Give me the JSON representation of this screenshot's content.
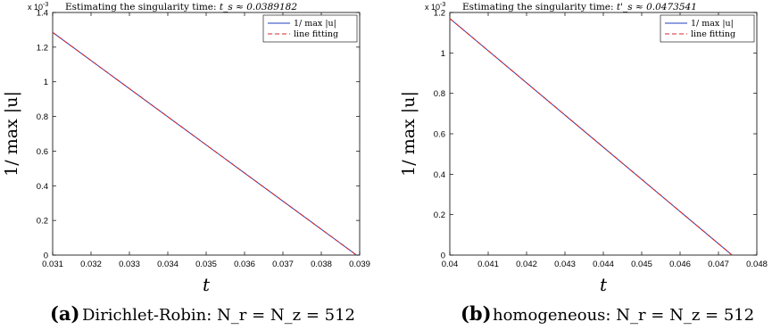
{
  "chart_data": [
    {
      "type": "line",
      "title": "Estimating the singularity time: t_s ≈ 0.0389182",
      "exponent_label": "x 10^-3",
      "xlabel": "t",
      "ylabel": "1/ max |u|",
      "xlim": [
        0.031,
        0.039
      ],
      "ylim": [
        0,
        1.4
      ],
      "xticks": [
        "0.031",
        "0.032",
        "0.033",
        "0.034",
        "0.035",
        "0.036",
        "0.037",
        "0.038",
        "0.039"
      ],
      "yticks": [
        "0",
        "0.2",
        "0.4",
        "0.6",
        "0.8",
        "1",
        "1.2",
        "1.4"
      ],
      "legend_position": "top-right",
      "series": [
        {
          "name": "1/ max |u|",
          "color": "#1f3fbf",
          "style": "solid",
          "x": [
            0.031,
            0.0389182
          ],
          "y": [
            1.285,
            0
          ]
        },
        {
          "name": "line fitting",
          "color": "#d62728",
          "style": "dashed",
          "x": [
            0.031,
            0.0389182
          ],
          "y": [
            1.285,
            0
          ]
        }
      ],
      "caption_tag": "(a)",
      "caption": "Dirichlet-Robin: N_r = N_z = 512"
    },
    {
      "type": "line",
      "title": "Estimating the singularity time: t'_s ≈ 0.0473541",
      "exponent_label": "x 10^-3",
      "xlabel": "t",
      "ylabel": "1/ max |u|",
      "xlim": [
        0.04,
        0.048
      ],
      "ylim": [
        0,
        1.2
      ],
      "xticks": [
        "0.04",
        "0.041",
        "0.042",
        "0.043",
        "0.044",
        "0.045",
        "0.046",
        "0.047",
        "0.048"
      ],
      "yticks": [
        "0",
        "0.2",
        "0.4",
        "0.6",
        "0.8",
        "1",
        "1.2"
      ],
      "legend_position": "top-right",
      "series": [
        {
          "name": "1/ max |u|",
          "color": "#1f3fbf",
          "style": "solid",
          "x": [
            0.04,
            0.0473541
          ],
          "y": [
            1.17,
            0
          ]
        },
        {
          "name": "line fitting",
          "color": "#d62728",
          "style": "dashed",
          "x": [
            0.04,
            0.0473541
          ],
          "y": [
            1.17,
            0
          ]
        }
      ],
      "caption_tag": "(b)",
      "caption": "homogeneous: N_r = N_z = 512"
    }
  ]
}
